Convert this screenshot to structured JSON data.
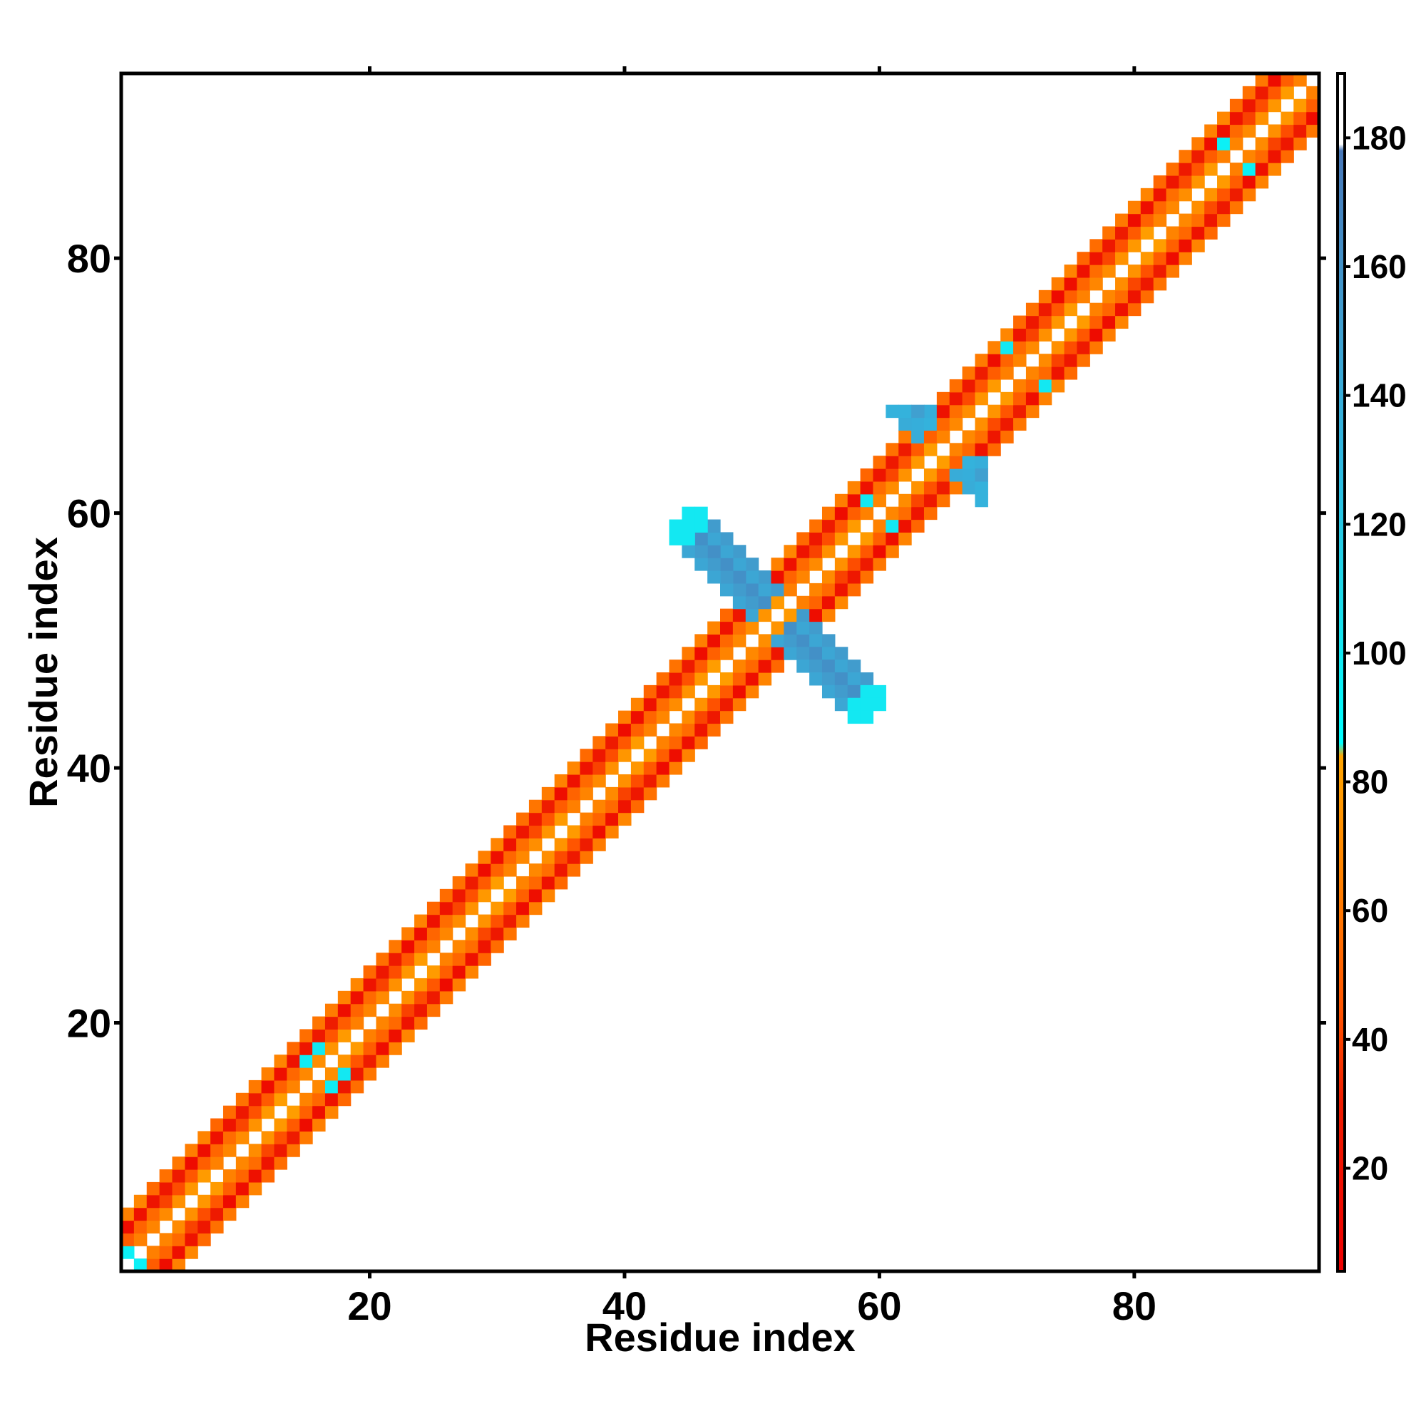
{
  "chart_data": {
    "type": "heatmap",
    "title": "",
    "xlabel": "Residue index",
    "ylabel": "Residue index",
    "xlim": [
      0.5,
      94.5
    ],
    "ylim": [
      0.5,
      94.5
    ],
    "xticks": [
      20,
      40,
      60,
      80
    ],
    "yticks": [
      20,
      40,
      60,
      80
    ],
    "grid": false,
    "colorbar": {
      "range": [
        4,
        190
      ],
      "ticks": [
        20,
        40,
        60,
        80,
        100,
        120,
        140,
        160,
        180
      ],
      "stops": [
        {
          "value": 4,
          "color": "#ee0000"
        },
        {
          "value": 30,
          "color": "#ee1c00"
        },
        {
          "value": 45,
          "color": "#ff5500"
        },
        {
          "value": 60,
          "color": "#ff7700"
        },
        {
          "value": 84,
          "color": "#ffa500"
        },
        {
          "value": 86,
          "color": "#00ffff"
        },
        {
          "value": 110,
          "color": "#20d8e8"
        },
        {
          "value": 130,
          "color": "#30b8e0"
        },
        {
          "value": 150,
          "color": "#40a0d0"
        },
        {
          "value": 178,
          "color": "#4878b8"
        },
        {
          "value": 179,
          "color": "#ffffff"
        },
        {
          "value": 190,
          "color": "#ffffff"
        }
      ]
    },
    "pattern": {
      "description": "symmetric near-diagonal contacts |i-j|<=4, plus antiparallel hairpin cross at residue 52",
      "diagonal_offsets": [
        {
          "offset": 1,
          "value": 72
        },
        {
          "offset": 2,
          "value": 48
        },
        {
          "offset": 3,
          "value": 22
        },
        {
          "offset": 4,
          "value": 60
        }
      ],
      "hairpin": {
        "center_sum": 104,
        "min_sep": 2,
        "max_sep": 14,
        "width": 2,
        "value": 145,
        "tip_value": 100
      },
      "cyan_patches": [
        {
          "i": 1,
          "j": 2,
          "value": 95
        },
        {
          "i": 15,
          "j": 17,
          "value": 98
        },
        {
          "i": 16,
          "j": 18,
          "value": 100
        },
        {
          "i": 87,
          "j": 89,
          "value": 95
        },
        {
          "i": 70,
          "j": 73,
          "value": 100
        },
        {
          "i": 59,
          "j": 61,
          "value": 100
        }
      ],
      "blue_patches": [
        {
          "i": 61,
          "j": 68,
          "value": 135
        },
        {
          "i": 62,
          "j": 67,
          "value": 140
        },
        {
          "i": 62,
          "j": 68,
          "value": 135
        },
        {
          "i": 63,
          "j": 66,
          "value": 140
        },
        {
          "i": 63,
          "j": 67,
          "value": 138
        },
        {
          "i": 64,
          "j": 67,
          "value": 135
        },
        {
          "i": 64,
          "j": 68,
          "value": 138
        },
        {
          "i": 63,
          "j": 68,
          "value": 150
        }
      ]
    }
  }
}
